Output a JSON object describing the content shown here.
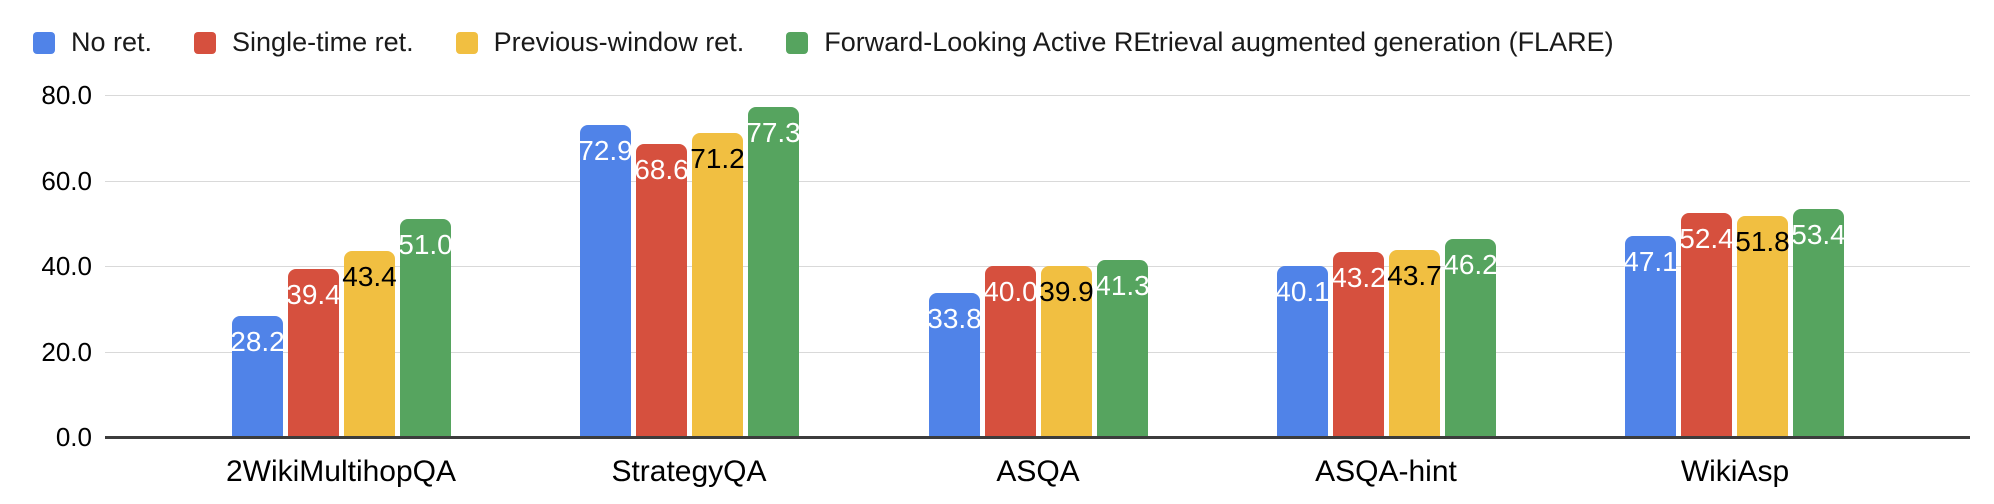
{
  "chart_data": {
    "type": "bar",
    "title": "",
    "xlabel": "",
    "ylabel": "",
    "categories": [
      "2WikiMultihopQA",
      "StrategyQA",
      "ASQA",
      "ASQA-hint",
      "WikiAsp"
    ],
    "series": [
      {
        "name": "No ret.",
        "color": "#5083E8",
        "label_color": "#FFFFFF",
        "values": [
          28.2,
          72.9,
          33.8,
          40.1,
          47.1
        ],
        "value_labels": [
          "28.2",
          "72.9",
          "33.8",
          "40.1",
          "47.1"
        ]
      },
      {
        "name": "Single-time ret.",
        "color": "#D6503E",
        "label_color": "#FFFFFF",
        "values": [
          39.4,
          68.6,
          40.0,
          43.2,
          52.4
        ],
        "value_labels": [
          "39.4",
          "68.6",
          "40.0",
          "43.2",
          "52.4"
        ]
      },
      {
        "name": "Previous-window ret.",
        "color": "#F1BF41",
        "label_color": "#000000",
        "values": [
          43.4,
          71.2,
          39.9,
          43.7,
          51.8
        ],
        "value_labels": [
          "43.4",
          "71.2",
          "39.9",
          "43.7",
          "51.8"
        ]
      },
      {
        "name": "Forward-Looking Active REtrieval augmented generation (FLARE)",
        "color": "#56A45F",
        "label_color": "#FFFFFF",
        "values": [
          51.0,
          77.3,
          41.3,
          46.2,
          53.4
        ],
        "value_labels": [
          "51.0",
          "77.3",
          "41.3",
          "46.2",
          "53.4"
        ]
      }
    ],
    "ylim": [
      0,
      80
    ],
    "yticks": [
      0,
      20,
      40,
      60,
      80
    ],
    "ytick_labels": [
      "0.0",
      "20.0",
      "40.0",
      "60.0",
      "80.0"
    ],
    "grid": true,
    "legend_position": "top",
    "colors": {
      "gridline": "#d9d9d9",
      "axis_line": "#3c3c3c",
      "text": "#000000"
    }
  }
}
